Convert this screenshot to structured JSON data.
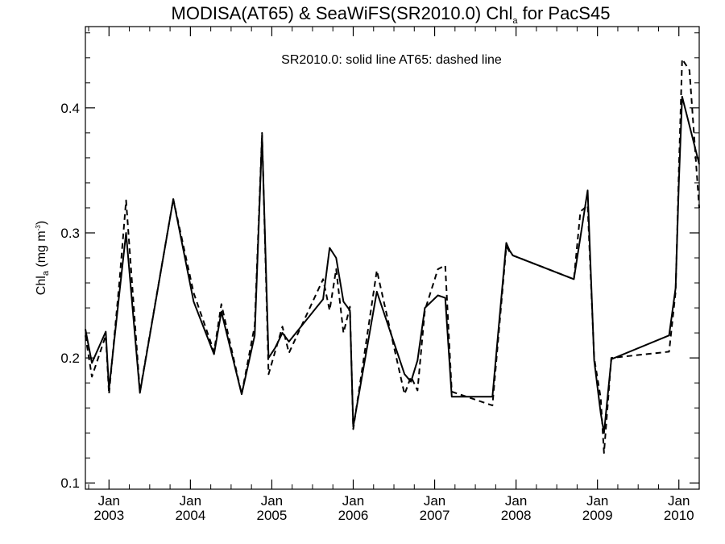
{
  "chart_data": {
    "type": "line",
    "title": {
      "main": "MODISA(AT65) & SeaWiFS(SR2010.0)  Chl",
      "subscript": "a",
      "suffix": " for PacS45"
    },
    "annotation": "SR2010.0: solid line   AT65: dashed line",
    "ylabel": {
      "main": "Chl",
      "subscript": "a",
      "unit_pre": " (mg m",
      "unit_sup": "-3",
      "unit_post": ")"
    },
    "ylim": [
      0.095,
      0.465
    ],
    "xlim": [
      2002.71,
      2010.25
    ],
    "yticks": [
      {
        "value": 0.1,
        "label": "0.1"
      },
      {
        "value": 0.2,
        "label": "0.2"
      },
      {
        "value": 0.3,
        "label": "0.3"
      },
      {
        "value": 0.4,
        "label": "0.4"
      }
    ],
    "xticks": [
      {
        "value": 2003.0,
        "month": "Jan",
        "year": "2003"
      },
      {
        "value": 2004.0,
        "month": "Jan",
        "year": "2004"
      },
      {
        "value": 2005.0,
        "month": "Jan",
        "year": "2005"
      },
      {
        "value": 2006.0,
        "month": "Jan",
        "year": "2006"
      },
      {
        "value": 2007.0,
        "month": "Jan",
        "year": "2007"
      },
      {
        "value": 2008.0,
        "month": "Jan",
        "year": "2008"
      },
      {
        "value": 2009.0,
        "month": "Jan",
        "year": "2009"
      },
      {
        "value": 2010.0,
        "month": "Jan",
        "year": "2010"
      }
    ],
    "grid": false,
    "series": [
      {
        "name": "SR2010.0",
        "style": "solid",
        "color": "#000000",
        "points": [
          [
            2002.71,
            0.223
          ],
          [
            2002.79,
            0.196
          ],
          [
            2002.96,
            0.221
          ],
          [
            2003.0,
            0.175
          ],
          [
            2003.13,
            0.253
          ],
          [
            2003.21,
            0.3
          ],
          [
            2003.38,
            0.172
          ],
          [
            2003.79,
            0.327
          ],
          [
            2004.04,
            0.245
          ],
          [
            2004.29,
            0.203
          ],
          [
            2004.38,
            0.237
          ],
          [
            2004.63,
            0.171
          ],
          [
            2004.79,
            0.218
          ],
          [
            2004.88,
            0.378
          ],
          [
            2004.96,
            0.2
          ],
          [
            2005.04,
            0.208
          ],
          [
            2005.13,
            0.22
          ],
          [
            2005.21,
            0.213
          ],
          [
            2005.63,
            0.247
          ],
          [
            2005.71,
            0.288
          ],
          [
            2005.79,
            0.28
          ],
          [
            2005.88,
            0.245
          ],
          [
            2005.96,
            0.238
          ],
          [
            2006.0,
            0.145
          ],
          [
            2006.29,
            0.253
          ],
          [
            2006.63,
            0.187
          ],
          [
            2006.71,
            0.181
          ],
          [
            2006.79,
            0.198
          ],
          [
            2006.88,
            0.24
          ],
          [
            2007.04,
            0.25
          ],
          [
            2007.13,
            0.248
          ],
          [
            2007.21,
            0.169
          ],
          [
            2007.71,
            0.169
          ],
          [
            2007.88,
            0.292
          ],
          [
            2007.92,
            0.286
          ],
          [
            2007.96,
            0.282
          ],
          [
            2008.71,
            0.263
          ],
          [
            2008.88,
            0.334
          ],
          [
            2008.96,
            0.198
          ],
          [
            2009.04,
            0.156
          ],
          [
            2009.08,
            0.14
          ],
          [
            2009.17,
            0.199
          ],
          [
            2009.88,
            0.218
          ],
          [
            2009.96,
            0.256
          ],
          [
            2010.0,
            0.34
          ],
          [
            2010.04,
            0.409
          ],
          [
            2010.25,
            0.355
          ]
        ]
      },
      {
        "name": "AT65",
        "style": "dashed",
        "color": "#000000",
        "points": [
          [
            2002.71,
            0.218
          ],
          [
            2002.79,
            0.185
          ],
          [
            2002.96,
            0.218
          ],
          [
            2003.0,
            0.171
          ],
          [
            2003.13,
            0.262
          ],
          [
            2003.21,
            0.326
          ],
          [
            2003.38,
            0.173
          ],
          [
            2003.79,
            0.327
          ],
          [
            2004.04,
            0.252
          ],
          [
            2004.29,
            0.205
          ],
          [
            2004.38,
            0.243
          ],
          [
            2004.63,
            0.171
          ],
          [
            2004.79,
            0.226
          ],
          [
            2004.88,
            0.38
          ],
          [
            2004.96,
            0.187
          ],
          [
            2005.04,
            0.205
          ],
          [
            2005.13,
            0.225
          ],
          [
            2005.21,
            0.204
          ],
          [
            2005.63,
            0.263
          ],
          [
            2005.71,
            0.238
          ],
          [
            2005.79,
            0.271
          ],
          [
            2005.88,
            0.22
          ],
          [
            2005.96,
            0.241
          ],
          [
            2006.0,
            0.143
          ],
          [
            2006.29,
            0.27
          ],
          [
            2006.63,
            0.171
          ],
          [
            2006.71,
            0.185
          ],
          [
            2006.79,
            0.174
          ],
          [
            2006.88,
            0.238
          ],
          [
            2007.04,
            0.271
          ],
          [
            2007.13,
            0.274
          ],
          [
            2007.21,
            0.173
          ],
          [
            2007.71,
            0.162
          ],
          [
            2007.88,
            0.289
          ],
          [
            2007.92,
            0.285
          ],
          [
            2007.96,
            0.282
          ],
          [
            2008.71,
            0.263
          ],
          [
            2008.79,
            0.317
          ],
          [
            2008.88,
            0.322
          ],
          [
            2008.96,
            0.2
          ],
          [
            2009.04,
            0.168
          ],
          [
            2009.08,
            0.124
          ],
          [
            2009.17,
            0.2
          ],
          [
            2009.88,
            0.205
          ],
          [
            2009.96,
            0.253
          ],
          [
            2010.0,
            0.35
          ],
          [
            2010.04,
            0.439
          ],
          [
            2010.13,
            0.43
          ],
          [
            2010.25,
            0.32
          ]
        ]
      }
    ]
  }
}
